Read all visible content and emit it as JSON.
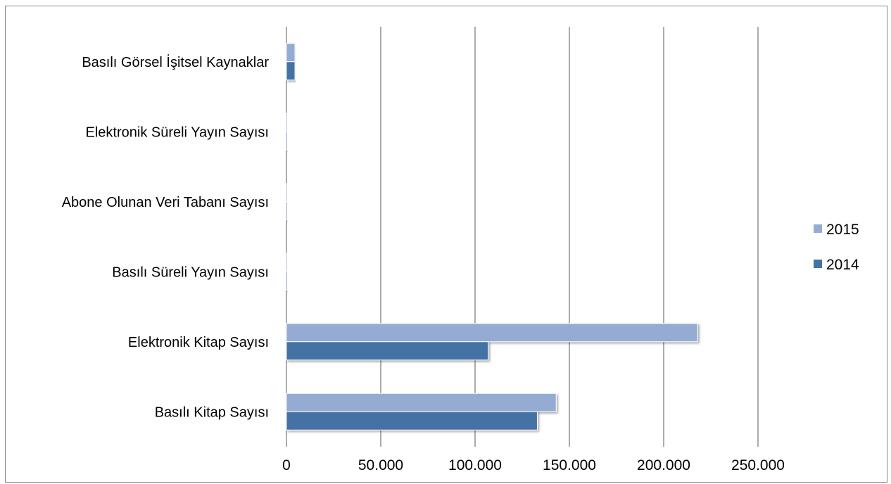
{
  "chart_data": {
    "type": "bar",
    "orientation": "horizontal",
    "categories": [
      "Basılı Kitap Sayısı",
      "Elektronik Kitap Sayısı",
      "Basılı Süreli Yayın Sayısı",
      "Abone Olunan Veri Tabanı Sayısı",
      "Elektronik Süreli Yayın Sayısı",
      "Basılı Görsel İşitsel Kaynaklar"
    ],
    "series": [
      {
        "name": "2014",
        "color": "#4472a4",
        "values": [
          133000,
          107000,
          500,
          60,
          300,
          4500
        ]
      },
      {
        "name": "2015",
        "color": "#94acd3",
        "values": [
          143000,
          218000,
          500,
          60,
          300,
          4500
        ]
      }
    ],
    "xlim": [
      0,
      250000
    ],
    "xticks": [
      0,
      50000,
      100000,
      150000,
      200000,
      250000
    ],
    "xtick_labels": [
      "0",
      "50.000",
      "100.000",
      "150.000",
      "200.000",
      "250.000"
    ],
    "grid": true,
    "legend_position": "right",
    "title": "",
    "xlabel": "",
    "ylabel": ""
  }
}
